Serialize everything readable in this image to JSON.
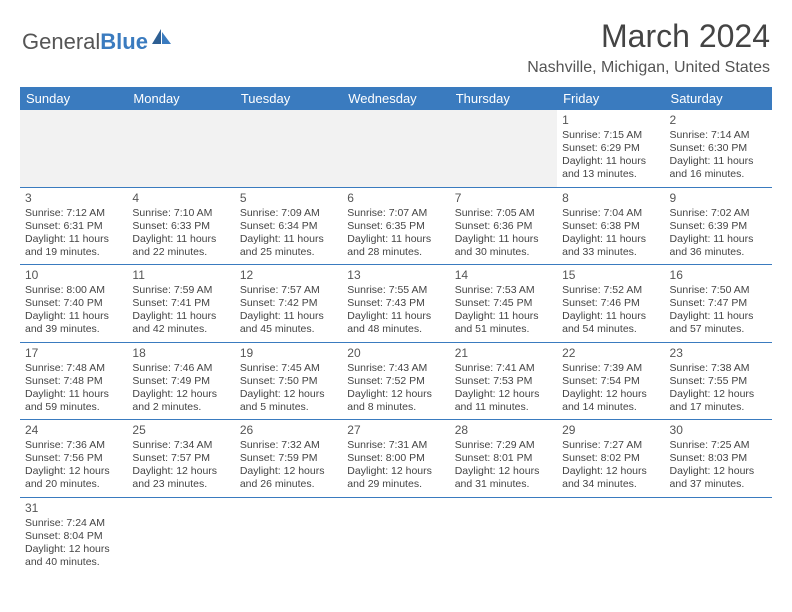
{
  "logo": {
    "text1": "General",
    "text2": "Blue"
  },
  "title": "March 2024",
  "location": "Nashville, Michigan, United States",
  "colors": {
    "header_bg": "#3a7bbf",
    "header_text": "#ffffff",
    "body_text": "#444444",
    "empty_bg": "#f2f2f2",
    "rule": "#3a7bbf"
  },
  "dayNames": [
    "Sunday",
    "Monday",
    "Tuesday",
    "Wednesday",
    "Thursday",
    "Friday",
    "Saturday"
  ],
  "weeks": [
    [
      null,
      null,
      null,
      null,
      null,
      {
        "n": "1",
        "sr": "7:15 AM",
        "ss": "6:29 PM",
        "dl": "11 hours and 13 minutes."
      },
      {
        "n": "2",
        "sr": "7:14 AM",
        "ss": "6:30 PM",
        "dl": "11 hours and 16 minutes."
      }
    ],
    [
      {
        "n": "3",
        "sr": "7:12 AM",
        "ss": "6:31 PM",
        "dl": "11 hours and 19 minutes."
      },
      {
        "n": "4",
        "sr": "7:10 AM",
        "ss": "6:33 PM",
        "dl": "11 hours and 22 minutes."
      },
      {
        "n": "5",
        "sr": "7:09 AM",
        "ss": "6:34 PM",
        "dl": "11 hours and 25 minutes."
      },
      {
        "n": "6",
        "sr": "7:07 AM",
        "ss": "6:35 PM",
        "dl": "11 hours and 28 minutes."
      },
      {
        "n": "7",
        "sr": "7:05 AM",
        "ss": "6:36 PM",
        "dl": "11 hours and 30 minutes."
      },
      {
        "n": "8",
        "sr": "7:04 AM",
        "ss": "6:38 PM",
        "dl": "11 hours and 33 minutes."
      },
      {
        "n": "9",
        "sr": "7:02 AM",
        "ss": "6:39 PM",
        "dl": "11 hours and 36 minutes."
      }
    ],
    [
      {
        "n": "10",
        "sr": "8:00 AM",
        "ss": "7:40 PM",
        "dl": "11 hours and 39 minutes."
      },
      {
        "n": "11",
        "sr": "7:59 AM",
        "ss": "7:41 PM",
        "dl": "11 hours and 42 minutes."
      },
      {
        "n": "12",
        "sr": "7:57 AM",
        "ss": "7:42 PM",
        "dl": "11 hours and 45 minutes."
      },
      {
        "n": "13",
        "sr": "7:55 AM",
        "ss": "7:43 PM",
        "dl": "11 hours and 48 minutes."
      },
      {
        "n": "14",
        "sr": "7:53 AM",
        "ss": "7:45 PM",
        "dl": "11 hours and 51 minutes."
      },
      {
        "n": "15",
        "sr": "7:52 AM",
        "ss": "7:46 PM",
        "dl": "11 hours and 54 minutes."
      },
      {
        "n": "16",
        "sr": "7:50 AM",
        "ss": "7:47 PM",
        "dl": "11 hours and 57 minutes."
      }
    ],
    [
      {
        "n": "17",
        "sr": "7:48 AM",
        "ss": "7:48 PM",
        "dl": "11 hours and 59 minutes."
      },
      {
        "n": "18",
        "sr": "7:46 AM",
        "ss": "7:49 PM",
        "dl": "12 hours and 2 minutes."
      },
      {
        "n": "19",
        "sr": "7:45 AM",
        "ss": "7:50 PM",
        "dl": "12 hours and 5 minutes."
      },
      {
        "n": "20",
        "sr": "7:43 AM",
        "ss": "7:52 PM",
        "dl": "12 hours and 8 minutes."
      },
      {
        "n": "21",
        "sr": "7:41 AM",
        "ss": "7:53 PM",
        "dl": "12 hours and 11 minutes."
      },
      {
        "n": "22",
        "sr": "7:39 AM",
        "ss": "7:54 PM",
        "dl": "12 hours and 14 minutes."
      },
      {
        "n": "23",
        "sr": "7:38 AM",
        "ss": "7:55 PM",
        "dl": "12 hours and 17 minutes."
      }
    ],
    [
      {
        "n": "24",
        "sr": "7:36 AM",
        "ss": "7:56 PM",
        "dl": "12 hours and 20 minutes."
      },
      {
        "n": "25",
        "sr": "7:34 AM",
        "ss": "7:57 PM",
        "dl": "12 hours and 23 minutes."
      },
      {
        "n": "26",
        "sr": "7:32 AM",
        "ss": "7:59 PM",
        "dl": "12 hours and 26 minutes."
      },
      {
        "n": "27",
        "sr": "7:31 AM",
        "ss": "8:00 PM",
        "dl": "12 hours and 29 minutes."
      },
      {
        "n": "28",
        "sr": "7:29 AM",
        "ss": "8:01 PM",
        "dl": "12 hours and 31 minutes."
      },
      {
        "n": "29",
        "sr": "7:27 AM",
        "ss": "8:02 PM",
        "dl": "12 hours and 34 minutes."
      },
      {
        "n": "30",
        "sr": "7:25 AM",
        "ss": "8:03 PM",
        "dl": "12 hours and 37 minutes."
      }
    ],
    [
      {
        "n": "31",
        "sr": "7:24 AM",
        "ss": "8:04 PM",
        "dl": "12 hours and 40 minutes."
      },
      null,
      null,
      null,
      null,
      null,
      null
    ]
  ],
  "labels": {
    "sunrise": "Sunrise: ",
    "sunset": "Sunset: ",
    "daylight": "Daylight: "
  }
}
